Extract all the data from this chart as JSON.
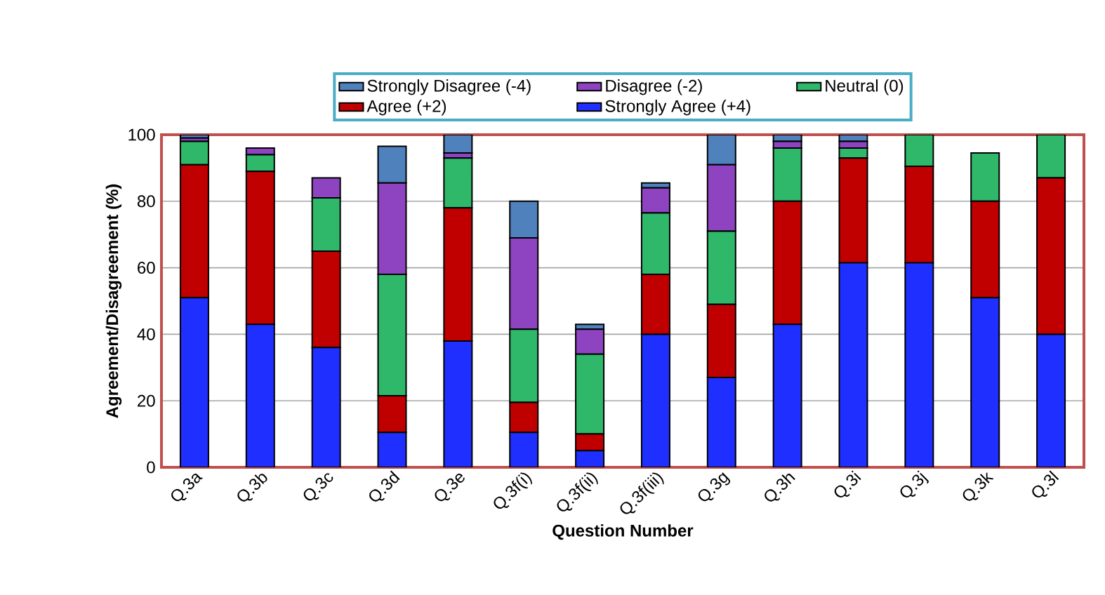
{
  "chart_data": {
    "type": "bar",
    "stacked": true,
    "xlabel": "Question Number",
    "ylabel": "Agreement/Disagreement (%)",
    "categories": [
      "Q.3a",
      "Q.3b",
      "Q.3c",
      "Q.3d",
      "Q.3e",
      "Q.3f(i)",
      "Q.3f(ii)",
      "Q.3f(iii)",
      "Q.3g",
      "Q.3h",
      "Q.3i",
      "Q.3j",
      "Q.3k",
      "Q.3l"
    ],
    "series": [
      {
        "name": "Strongly Agree (+4)",
        "color": "#1f2fff",
        "values": [
          51,
          43,
          36,
          10.5,
          38,
          10.5,
          5,
          40,
          27,
          43,
          61.5,
          61.5,
          51,
          40
        ]
      },
      {
        "name": "Agree (+2)",
        "color": "#c00000",
        "values": [
          40,
          46,
          29,
          11,
          40,
          9,
          5,
          18,
          22,
          37,
          31.5,
          29,
          29,
          47
        ]
      },
      {
        "name": "Neutral (0)",
        "color": "#2fb86a",
        "values": [
          7,
          5,
          16,
          36.5,
          15,
          22,
          24,
          18.5,
          22,
          16,
          3,
          9.5,
          14.5,
          13
        ]
      },
      {
        "name": "Disagree (-2)",
        "color": "#8e44c0",
        "values": [
          1,
          2,
          6,
          27.5,
          1.5,
          27.5,
          7.5,
          7.5,
          20,
          2,
          2,
          0,
          0,
          0
        ]
      },
      {
        "name": "Strongly Disagree (-4)",
        "color": "#4f81bd",
        "values": [
          1,
          0,
          0,
          11,
          5.5,
          11,
          1.5,
          1.5,
          9,
          2,
          2,
          0,
          0,
          0
        ]
      }
    ],
    "ylim": [
      0,
      100
    ],
    "yticks": [
      0,
      20,
      40,
      60,
      80,
      100
    ],
    "grid": "y",
    "legend": "top"
  }
}
